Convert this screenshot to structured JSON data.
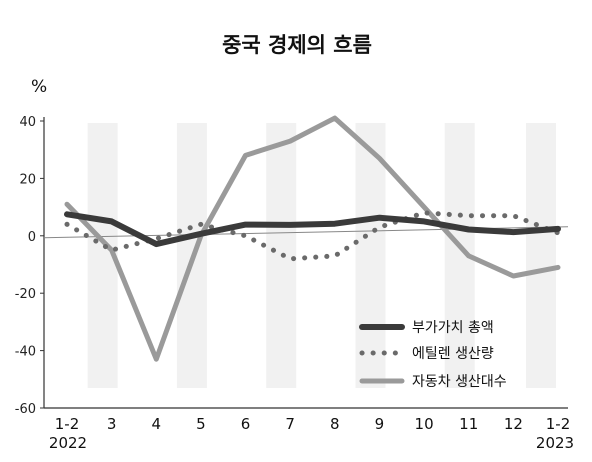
{
  "chart_data": {
    "type": "line",
    "title": "중국 경제의 흐름",
    "ylabel": "%",
    "ylim": [
      -60,
      40
    ],
    "yticks": [
      40,
      20,
      0,
      -20,
      -40,
      -60
    ],
    "categories": [
      "1-2",
      "3",
      "4",
      "5",
      "6",
      "7",
      "8",
      "9",
      "10",
      "11",
      "12",
      "1-2"
    ],
    "year_labels": {
      "start": "2022",
      "end": "2023"
    },
    "grid": false,
    "legend_position": "bottom-right",
    "series": [
      {
        "name": "부가가치 총액",
        "style": "solid-thick",
        "color": "#3a3a3a",
        "values": [
          7.5,
          5,
          -2.9,
          0.7,
          3.9,
          3.8,
          4.2,
          6.3,
          5.0,
          2.2,
          1.3,
          2.4
        ]
      },
      {
        "name": "에틸렌 생산량",
        "style": "dotted",
        "color": "#6a6a6a",
        "values": [
          4,
          -5,
          -1,
          4,
          0,
          -8,
          -7,
          3,
          8,
          7,
          7,
          1
        ]
      },
      {
        "name": "자동차 생산대수",
        "style": "solid",
        "color": "#9a9a9a",
        "values": [
          11,
          -5,
          -43,
          0,
          28,
          33,
          41,
          27,
          10,
          -7,
          -14,
          -11
        ]
      }
    ]
  }
}
